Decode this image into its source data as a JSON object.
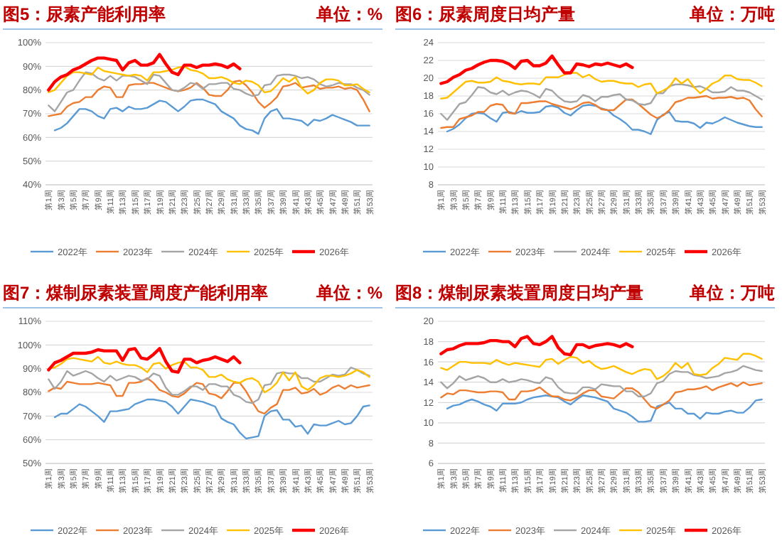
{
  "chart_data": [
    {
      "type": "line",
      "title": "图5：尿素产能利用率",
      "subtitle": "单位：%",
      "grid": "y",
      "legend": "bottom",
      "ylim": [
        40,
        100
      ],
      "yticks": [
        {
          "value": 40,
          "label": "40%"
        },
        {
          "value": 50,
          "label": "50%"
        },
        {
          "value": 60,
          "label": "60%"
        },
        {
          "value": 70,
          "label": "70%"
        },
        {
          "value": 80,
          "label": "80%"
        },
        {
          "value": 90,
          "label": "90%"
        },
        {
          "value": 100,
          "label": "100%"
        }
      ],
      "categories": [
        "第1周",
        null,
        "第3周",
        null,
        "第5周",
        null,
        "第7周",
        null,
        "第9周",
        null,
        "第11周",
        null,
        "第13周",
        null,
        "第15周",
        null,
        "第17周",
        null,
        "第19周",
        null,
        "第21周",
        null,
        "第23周",
        null,
        "第25周",
        null,
        "第27周",
        null,
        "第29周",
        null,
        "第31周",
        null,
        "第33周",
        null,
        "第35周",
        null,
        "第37周",
        null,
        "第39周",
        null,
        "第41周",
        null,
        "第43周",
        null,
        "第45周",
        null,
        "第47周",
        null,
        "第49周",
        null,
        "第51周",
        null,
        "第53周"
      ],
      "series": [
        {
          "name": "2022年",
          "color": "#5b9bd5",
          "values": [
            null,
            63,
            64,
            66,
            69,
            72,
            72,
            71,
            69,
            68,
            72,
            72.5,
            71,
            73,
            72,
            72,
            72.5,
            74,
            75.5,
            75,
            73,
            71,
            73,
            75.5,
            76,
            76,
            75,
            74,
            71,
            69.5,
            68,
            65,
            63.5,
            63,
            61.5,
            68,
            71,
            72,
            68,
            68,
            67.5,
            67,
            65,
            67.5,
            67,
            68,
            69.5,
            68.5,
            67.5,
            66.5,
            65,
            65,
            65
          ]
        },
        {
          "name": "2023年",
          "color": "#ed7d31",
          "values": [
            69,
            69.5,
            70,
            73,
            74.5,
            75,
            77,
            77,
            80,
            81.5,
            81,
            77,
            77,
            82,
            82.5,
            82.5,
            83,
            83,
            82,
            81,
            80,
            79.5,
            80,
            81,
            83,
            81,
            78,
            77.5,
            77.5,
            80,
            83.5,
            84,
            82,
            79,
            75,
            72.5,
            74.5,
            77,
            81.5,
            82,
            83,
            81,
            81.5,
            82,
            80.5,
            81,
            81,
            81.5,
            80.5,
            81,
            80,
            76,
            71
          ]
        },
        {
          "name": "2024年",
          "color": "#a5a5a5",
          "values": [
            73.5,
            71,
            75,
            79,
            80,
            84,
            87.5,
            87,
            85,
            84,
            86,
            84,
            86,
            86,
            85.5,
            84,
            82.5,
            86.5,
            86,
            83,
            80,
            79.5,
            81,
            83,
            82.5,
            80.5,
            82.5,
            82.5,
            83,
            83,
            80.5,
            80,
            78.5,
            77.5,
            78,
            82,
            82.5,
            86,
            86.5,
            86.5,
            86,
            85,
            85.5,
            84.5,
            82.5,
            81.5,
            82,
            83,
            82.5,
            82.5,
            81,
            80,
            78
          ]
        },
        {
          "name": "2025年",
          "color": "#ffc000",
          "values": [
            79,
            80,
            83,
            86,
            87.5,
            87.5,
            87,
            86.5,
            89.5,
            88,
            87.5,
            87,
            86.5,
            86,
            86.5,
            86,
            84,
            87.5,
            87.5,
            88,
            88.5,
            89.5,
            90,
            88.5,
            88,
            87,
            85,
            85,
            85.5,
            84.5,
            83,
            82.5,
            84,
            83.5,
            82,
            79,
            79.5,
            82,
            85,
            83.5,
            85.5,
            81,
            78.5,
            80,
            83,
            84.5,
            84.5,
            84,
            82,
            82,
            82.5,
            80.5,
            79
          ]
        },
        {
          "name": "2026年",
          "color": "#ff0000",
          "values": [
            80,
            83.5,
            85.5,
            86.5,
            88.5,
            89.5,
            91,
            92.5,
            93.5,
            93.5,
            93,
            92.5,
            88.5,
            91.5,
            92.5,
            90.5,
            90.5,
            91.5,
            95,
            91,
            87.5,
            86.5,
            90.5,
            90.5,
            89.5,
            90.5,
            90.5,
            91,
            90.5,
            89.5,
            91,
            89,
            null,
            null,
            null,
            null,
            null,
            null,
            null,
            null,
            null,
            null,
            null,
            null,
            null,
            null,
            null,
            null,
            null,
            null,
            null,
            null,
            null
          ]
        }
      ]
    },
    {
      "type": "line",
      "title": "图6：尿素周度日均产量",
      "subtitle": "单位：万吨",
      "grid": "y",
      "legend": "bottom",
      "ylim": [
        8,
        24
      ],
      "yticks": [
        8,
        10,
        12,
        14,
        16,
        18,
        20,
        22,
        24
      ],
      "categories": [
        "第1周",
        null,
        "第3周",
        null,
        "第5周",
        null,
        "第7周",
        null,
        "第9周",
        null,
        "第11周",
        null,
        "第13周",
        null,
        "第15周",
        null,
        "第17周",
        null,
        "第19周",
        null,
        "第21周",
        null,
        "第23周",
        null,
        "第25周",
        null,
        "第27周",
        null,
        "第29周",
        null,
        "第31周",
        null,
        "第33周",
        null,
        "第35周",
        null,
        "第37周",
        null,
        "第39周",
        null,
        "第41周",
        null,
        "第43周",
        null,
        "第45周",
        null,
        "第47周",
        null,
        "第49周",
        null,
        "第51周",
        null,
        "第53周"
      ],
      "series": [
        {
          "name": "2022年",
          "color": "#5b9bd5",
          "values": [
            null,
            14.0,
            14.3,
            14.8,
            15.5,
            16.0,
            16.1,
            16.0,
            15.5,
            15.1,
            16.1,
            16.2,
            16.0,
            16.3,
            16.1,
            16.1,
            16.2,
            16.8,
            16.9,
            16.7,
            16.1,
            15.8,
            16.4,
            16.9,
            17.0,
            16.9,
            16.6,
            16.4,
            15.8,
            15.4,
            14.9,
            14.2,
            14.2,
            14.0,
            13.7,
            15.3,
            15.9,
            16.2,
            15.2,
            15.1,
            15.1,
            14.9,
            14.4,
            15.0,
            14.9,
            15.2,
            15.6,
            15.3,
            15.0,
            14.8,
            14.6,
            14.5,
            14.5
          ]
        },
        {
          "name": "2023年",
          "color": "#ed7d31",
          "values": [
            14.4,
            14.5,
            14.5,
            15.4,
            15.6,
            15.8,
            16.2,
            16.2,
            16.9,
            17.1,
            17.0,
            16.1,
            16.0,
            17.2,
            17.2,
            17.3,
            17.4,
            17.4,
            17.1,
            16.9,
            16.7,
            16.5,
            16.8,
            17.2,
            17.3,
            17.0,
            16.5,
            16.4,
            16.4,
            17.0,
            17.6,
            17.6,
            17.1,
            16.5,
            15.9,
            15.5,
            15.8,
            16.4,
            17.3,
            17.5,
            17.8,
            17.8,
            17.9,
            18.0,
            17.7,
            17.8,
            17.8,
            17.9,
            17.7,
            17.8,
            17.5,
            16.5,
            15.7
          ]
        },
        {
          "name": "2024年",
          "color": "#a5a5a5",
          "values": [
            16.0,
            15.3,
            16.2,
            17.1,
            17.3,
            18.1,
            19.0,
            18.9,
            18.4,
            18.2,
            18.6,
            18.1,
            18.4,
            18.6,
            18.5,
            18.2,
            17.8,
            18.8,
            18.6,
            17.9,
            17.4,
            17.3,
            17.4,
            18.1,
            17.9,
            17.4,
            17.9,
            17.9,
            18.1,
            18.2,
            17.6,
            17.5,
            17.1,
            17.0,
            17.2,
            18.3,
            18.3,
            19.1,
            19.3,
            19.3,
            19.2,
            19.0,
            19.1,
            18.8,
            18.4,
            18.4,
            18.5,
            19.0,
            18.6,
            18.6,
            18.4,
            18.0,
            17.6
          ]
        },
        {
          "name": "2025年",
          "color": "#ffc000",
          "values": [
            17.7,
            17.8,
            18.4,
            19.0,
            19.6,
            19.7,
            19.5,
            19.5,
            19.6,
            20.1,
            19.7,
            19.6,
            19.4,
            19.3,
            19.4,
            19.4,
            19.3,
            20.1,
            20.1,
            20.1,
            20.4,
            20.6,
            20.6,
            20.1,
            20.4,
            19.9,
            19.6,
            19.7,
            19.7,
            19.5,
            19.4,
            19.4,
            19.0,
            19.3,
            19.4,
            18.3,
            18.6,
            19.0,
            20.0,
            19.4,
            19.9,
            19.0,
            18.3,
            18.8,
            19.4,
            19.7,
            20.3,
            20.3,
            19.9,
            19.8,
            19.8,
            19.5,
            19.1
          ]
        },
        {
          "name": "2026年",
          "color": "#ff0000",
          "values": [
            19.4,
            19.6,
            20.1,
            20.4,
            20.9,
            21.1,
            21.5,
            21.8,
            22.0,
            22.0,
            21.9,
            21.6,
            21.1,
            21.9,
            22.0,
            21.4,
            21.4,
            21.7,
            22.5,
            21.5,
            20.6,
            20.6,
            21.6,
            21.5,
            21.3,
            21.6,
            21.5,
            21.7,
            21.5,
            21.3,
            21.6,
            21.2,
            null,
            null,
            null,
            null,
            null,
            null,
            null,
            null,
            null,
            null,
            null,
            null,
            null,
            null,
            null,
            null,
            null,
            null,
            null,
            null,
            null
          ]
        }
      ]
    },
    {
      "type": "line",
      "title": "图7：煤制尿素装置周度产能利用率",
      "subtitle": "单位：%",
      "grid": "y",
      "legend": "bottom",
      "ylim": [
        50,
        110
      ],
      "yticks": [
        {
          "value": 50,
          "label": "50%"
        },
        {
          "value": 60,
          "label": "60%"
        },
        {
          "value": 70,
          "label": "70%"
        },
        {
          "value": 80,
          "label": "80%"
        },
        {
          "value": 90,
          "label": "90%"
        },
        {
          "value": 100,
          "label": "100%"
        },
        {
          "value": 110,
          "label": "110%"
        }
      ],
      "categories": [
        "第1周",
        null,
        "第3周",
        null,
        "第5周",
        null,
        "第7周",
        null,
        "第9周",
        null,
        "第11周",
        null,
        "第13周",
        null,
        "第15周",
        null,
        "第17周",
        null,
        "第19周",
        null,
        "第21周",
        null,
        "第23周",
        null,
        "第25周",
        null,
        "第27周",
        null,
        "第29周",
        null,
        "第31周",
        null,
        "第33周",
        null,
        "第35周",
        null,
        "第37周",
        null,
        "第39周",
        null,
        "第41周",
        null,
        "第43周",
        null,
        "第45周",
        null,
        "第47周",
        null,
        "第49周",
        null,
        "第51周",
        null,
        "第53周"
      ],
      "series": [
        {
          "name": "2022年",
          "color": "#5b9bd5",
          "values": [
            null,
            69.5,
            71,
            71,
            73,
            75,
            74,
            72,
            70,
            67.5,
            72,
            72,
            72.5,
            73,
            75,
            76,
            77,
            77,
            76.5,
            76,
            74,
            71,
            74,
            77,
            76.5,
            76,
            75,
            74,
            69,
            67.5,
            66.5,
            63,
            60.5,
            61,
            61.5,
            70,
            72,
            72.5,
            68.5,
            68.5,
            65.5,
            66,
            62.5,
            66.5,
            66,
            66,
            67,
            68,
            66.5,
            67,
            70,
            74,
            74.5
          ]
        },
        {
          "name": "2023年",
          "color": "#ed7d31",
          "values": [
            80.5,
            82,
            81.5,
            84.5,
            84,
            83.5,
            83.5,
            83.5,
            84,
            83.5,
            83,
            78.5,
            78.5,
            84,
            84,
            84.5,
            86,
            84,
            81,
            80,
            78.5,
            78,
            79.5,
            82,
            84,
            83.5,
            79.5,
            79,
            77.5,
            80.5,
            84,
            84,
            80.5,
            76,
            72,
            71,
            73.5,
            75,
            81,
            81,
            82,
            79.5,
            80,
            81.5,
            79,
            80,
            82,
            83,
            81.5,
            83,
            82,
            82.5,
            83
          ]
        },
        {
          "name": "2024年",
          "color": "#a5a5a5",
          "values": [
            85.5,
            81.5,
            84.5,
            89,
            87,
            88,
            89,
            88,
            86,
            84.5,
            87,
            85,
            86,
            87,
            86.5,
            85,
            85.5,
            88,
            87,
            82,
            79,
            79,
            80.5,
            82.5,
            82.5,
            81,
            83.5,
            83.5,
            82.5,
            82.5,
            79,
            78,
            76,
            75.5,
            77,
            83,
            83.5,
            88,
            88.5,
            88,
            88,
            86,
            86,
            84.5,
            84.5,
            86,
            87.5,
            87,
            87.5,
            90.5,
            89.5,
            88,
            87
          ]
        },
        {
          "name": "2025年",
          "color": "#ffc000",
          "values": [
            90,
            90.5,
            92,
            94,
            94.5,
            94,
            93.5,
            93,
            95,
            92.5,
            92,
            93,
            92,
            91.5,
            91.5,
            90.5,
            88.5,
            92,
            92.5,
            90,
            91.5,
            92.5,
            93,
            90.5,
            90.5,
            89.5,
            86.5,
            86.5,
            87.5,
            85.5,
            84.5,
            84,
            85.5,
            86,
            84.5,
            80,
            81.5,
            84,
            88.5,
            85,
            88.5,
            82.5,
            81,
            83,
            86,
            87,
            87,
            86.5,
            87,
            88,
            89.5,
            88.5,
            86.5
          ]
        },
        {
          "name": "2026年",
          "color": "#ff0000",
          "values": [
            89.5,
            92.5,
            93.5,
            95,
            96.5,
            96.5,
            96.5,
            97,
            98,
            97.5,
            97.5,
            97.5,
            93.5,
            98,
            98.5,
            94.5,
            94,
            96,
            98.5,
            93,
            89,
            88.5,
            94,
            94,
            92.5,
            93.5,
            94,
            95,
            94,
            93,
            95,
            92.5,
            null,
            null,
            null,
            null,
            null,
            null,
            null,
            null,
            null,
            null,
            null,
            null,
            null,
            null,
            null,
            null,
            null,
            null,
            null,
            null,
            null
          ]
        }
      ]
    },
    {
      "type": "line",
      "title": "图8：煤制尿素装置周度日均产量",
      "subtitle": "单位：万吨",
      "grid": "y",
      "legend": "bottom",
      "ylim": [
        6,
        20
      ],
      "yticks": [
        6,
        8,
        10,
        12,
        14,
        16,
        18,
        20
      ],
      "categories": [
        "第1周",
        null,
        "第3周",
        null,
        "第5周",
        null,
        "第7周",
        null,
        "第9周",
        null,
        "第11周",
        null,
        "第13周",
        null,
        "第15周",
        null,
        "第17周",
        null,
        "第19周",
        null,
        "第21周",
        null,
        "第23周",
        null,
        "第25周",
        null,
        "第27周",
        null,
        "第29周",
        null,
        "第31周",
        null,
        "第33周",
        null,
        "第35周",
        null,
        "第37周",
        null,
        "第39周",
        null,
        "第41周",
        null,
        "第43周",
        null,
        "第45周",
        null,
        "第47周",
        null,
        "第49周",
        null,
        "第51周",
        null,
        "第53周"
      ],
      "series": [
        {
          "name": "2022年",
          "color": "#5b9bd5",
          "values": [
            null,
            11.4,
            11.7,
            11.8,
            12.1,
            12.3,
            12.1,
            11.8,
            11.6,
            11.2,
            11.9,
            11.9,
            11.9,
            12.0,
            12.3,
            12.5,
            12.6,
            12.7,
            12.6,
            12.5,
            12.1,
            11.8,
            12.3,
            12.7,
            12.6,
            12.5,
            12.3,
            12.1,
            11.4,
            11.2,
            11.0,
            10.6,
            10.1,
            10.1,
            10.2,
            11.6,
            11.8,
            12.0,
            11.4,
            11.4,
            10.9,
            10.9,
            10.4,
            11.0,
            10.9,
            10.9,
            11.1,
            11.2,
            11.0,
            11.0,
            11.5,
            12.2,
            12.3
          ]
        },
        {
          "name": "2023年",
          "color": "#ed7d31",
          "values": [
            12.5,
            12.9,
            12.8,
            13.2,
            13.2,
            13.1,
            13.0,
            13.0,
            13.1,
            13.1,
            13.0,
            12.3,
            12.3,
            13.1,
            13.1,
            13.2,
            13.5,
            13.0,
            12.6,
            12.6,
            12.3,
            12.2,
            12.5,
            12.9,
            13.2,
            13.2,
            12.6,
            12.5,
            12.4,
            12.9,
            13.4,
            13.4,
            13.0,
            12.3,
            11.6,
            11.4,
            11.8,
            12.2,
            13.0,
            13.1,
            13.3,
            13.3,
            13.4,
            13.6,
            13.2,
            13.5,
            13.7,
            13.9,
            13.6,
            14.0,
            13.7,
            13.8,
            13.9
          ]
        },
        {
          "name": "2024年",
          "color": "#a5a5a5",
          "values": [
            14.0,
            13.4,
            13.9,
            14.6,
            14.2,
            14.4,
            14.6,
            14.4,
            14.0,
            14.0,
            14.3,
            14.0,
            14.1,
            14.3,
            14.2,
            14.0,
            13.9,
            14.5,
            14.3,
            13.5,
            13.0,
            12.9,
            12.9,
            13.5,
            13.5,
            13.3,
            13.8,
            13.7,
            13.6,
            13.6,
            13.1,
            13.1,
            12.6,
            12.6,
            12.9,
            13.9,
            14.1,
            14.8,
            15.1,
            15.0,
            15.0,
            14.7,
            14.6,
            14.4,
            14.5,
            14.6,
            14.9,
            15.0,
            15.2,
            15.6,
            15.4,
            15.2,
            15.1
          ]
        },
        {
          "name": "2025年",
          "color": "#ffc000",
          "values": [
            15.4,
            15.2,
            15.6,
            16.0,
            16.0,
            15.9,
            15.9,
            15.9,
            15.8,
            16.2,
            15.9,
            15.7,
            15.9,
            15.8,
            15.7,
            15.6,
            15.5,
            16.2,
            16.3,
            15.8,
            16.2,
            16.5,
            16.4,
            15.9,
            16.1,
            15.6,
            15.3,
            15.4,
            15.6,
            15.3,
            15.0,
            14.8,
            15.1,
            15.3,
            15.2,
            14.3,
            14.6,
            15.1,
            15.9,
            15.4,
            15.9,
            14.8,
            14.7,
            14.8,
            15.4,
            15.8,
            16.4,
            16.3,
            16.2,
            16.8,
            16.8,
            16.6,
            16.3
          ]
        },
        {
          "name": "2026年",
          "color": "#ff0000",
          "values": [
            16.8,
            17.2,
            17.3,
            17.6,
            17.8,
            17.8,
            17.8,
            17.9,
            18.1,
            18.1,
            18.0,
            18.0,
            17.5,
            18.3,
            18.5,
            17.8,
            17.7,
            18.0,
            18.5,
            17.4,
            16.8,
            16.7,
            17.7,
            17.7,
            17.4,
            17.6,
            17.7,
            17.8,
            17.7,
            17.5,
            17.8,
            17.5,
            null,
            null,
            null,
            null,
            null,
            null,
            null,
            null,
            null,
            null,
            null,
            null,
            null,
            null,
            null,
            null,
            null,
            null,
            null,
            null,
            null
          ]
        }
      ]
    }
  ]
}
